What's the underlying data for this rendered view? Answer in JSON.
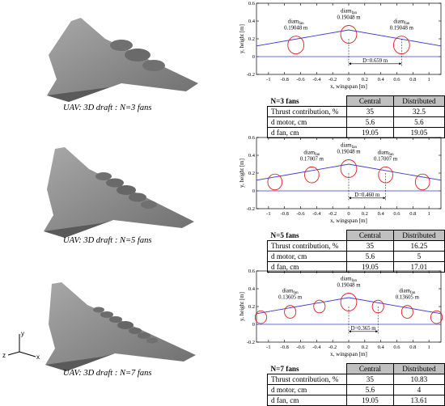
{
  "panels": [
    {
      "caption": "UAV: 3D draft : N=3 fans",
      "n": 3,
      "chart_data": {
        "type": "scatter",
        "xlabel": "x, wingspan [m]",
        "ylabel": "y, height [m]",
        "xlim": [
          -1.15,
          1.15
        ],
        "ylim": [
          -0.2,
          0.6
        ],
        "xticks": [
          "-1",
          "-0.8",
          "-0.6",
          "-0.4",
          "-0.2",
          "0",
          "0.2",
          "0.4",
          "0.6",
          "0.8",
          "1"
        ],
        "yticks": [
          "-0.2",
          "0",
          "0.2",
          "0.4",
          "0.6"
        ],
        "fan_centers_x": [
          -0.659,
          0,
          0.659
        ],
        "fan_centers_y": [
          0.13,
          0.25,
          0.13
        ],
        "fan_diameters": [
          0.19048,
          0.19048,
          0.19048
        ],
        "fan_label_indices": [
          0,
          1,
          2
        ],
        "labels": [
          "diam",
          "diam",
          "diam"
        ],
        "label_sub": "fan",
        "label_values": [
          "0.19048 m",
          "0.19048 m",
          "0.19048 m"
        ],
        "spacing_label": "D=0.659 m",
        "spacing_x": [
          0,
          0.659
        ]
      },
      "table": {
        "title": "N=3 fans",
        "col1": "Central",
        "col2": "Distributed",
        "rows": [
          {
            "label": "Thrust contribution, %",
            "c": "35",
            "d": "32.5"
          },
          {
            "label": "d motor, cm",
            "c": "5.6",
            "d": "5.6"
          },
          {
            "label": "d fan, cm",
            "c": "19.05",
            "d": "19.05"
          }
        ]
      }
    },
    {
      "caption": "UAV: 3D draft : N=5 fans",
      "n": 5,
      "chart_data": {
        "type": "scatter",
        "xlabel": "x, wingspan [m]",
        "ylabel": "y, height [m]",
        "xlim": [
          -1.15,
          1.15
        ],
        "ylim": [
          -0.2,
          0.6
        ],
        "xticks": [
          "-1",
          "-0.8",
          "-0.6",
          "-0.4",
          "-0.2",
          "0",
          "0.2",
          "0.4",
          "0.6",
          "0.8",
          "1"
        ],
        "yticks": [
          "-0.2",
          "0",
          "0.2",
          "0.4",
          "0.6"
        ],
        "fan_centers_x": [
          -0.92,
          -0.46,
          0,
          0.46,
          0.92
        ],
        "fan_centers_y": [
          0.1,
          0.18,
          0.25,
          0.18,
          0.1
        ],
        "fan_diameters": [
          0.17007,
          0.17007,
          0.19048,
          0.17007,
          0.17007
        ],
        "fan_label_indices": [
          1,
          2,
          3
        ],
        "labels": [
          "diam",
          "diam",
          "diam"
        ],
        "label_sub": "fan",
        "label_values": [
          "0.17007 m",
          "0.19048 m",
          "0.17007 m"
        ],
        "spacing_label": "D=0.460 m",
        "spacing_x": [
          0,
          0.46
        ]
      },
      "table": {
        "title": "N=5 fans",
        "col1": "Central",
        "col2": "Distributed",
        "rows": [
          {
            "label": "Thrust contribution, %",
            "c": "35",
            "d": "16.25"
          },
          {
            "label": "d motor, cm",
            "c": "5.6",
            "d": "5"
          },
          {
            "label": "d fan, cm",
            "c": "19.05",
            "d": "17.01"
          }
        ]
      }
    },
    {
      "caption": "UAV: 3D draft : N=7 fans",
      "n": 7,
      "chart_data": {
        "type": "scatter",
        "xlabel": "x, wingspan [m]",
        "ylabel": "y, height [m]",
        "xlim": [
          -1.15,
          1.15
        ],
        "ylim": [
          -0.2,
          0.6
        ],
        "xticks": [
          "-1",
          "-0.8",
          "-0.6",
          "-0.4",
          "-0.2",
          "0",
          "0.2",
          "0.4",
          "0.6",
          "0.8",
          "1"
        ],
        "yticks": [
          "-0.2",
          "0",
          "0.2",
          "0.4",
          "0.6"
        ],
        "fan_centers_x": [
          -1.095,
          -0.73,
          -0.365,
          0,
          0.365,
          0.73,
          1.095
        ],
        "fan_centers_y": [
          0.08,
          0.14,
          0.2,
          0.25,
          0.2,
          0.14,
          0.08
        ],
        "fan_diameters": [
          0.13605,
          0.13605,
          0.13605,
          0.19048,
          0.13605,
          0.13605,
          0.13605
        ],
        "fan_label_indices": [
          1,
          3,
          5
        ],
        "labels": [
          "diam",
          "diam",
          "diam"
        ],
        "label_sub": "fan",
        "label_values": [
          "0.13605 m",
          "0.19048 m",
          "0.13605 m"
        ],
        "spacing_label": "D=0.365 m",
        "spacing_x": [
          0,
          0.365
        ]
      },
      "table": {
        "title": "N=7 fans",
        "col1": "Central",
        "col2": "Distributed",
        "rows": [
          {
            "label": "Thrust contribution, %",
            "c": "35",
            "d": "10.83"
          },
          {
            "label": "d motor, cm",
            "c": "5.6",
            "d": "4"
          },
          {
            "label": "d fan, cm",
            "c": "19.05",
            "d": "13.61"
          }
        ]
      }
    }
  ],
  "axes_icon": {
    "x": "x",
    "y": "y",
    "z": "z"
  },
  "colors": {
    "envelope": "#3a3ad0",
    "fan": "#e02020",
    "uav_body": "#8c8c8c",
    "uav_dark": "#5a5a5a",
    "header_fill": "#c0c0c0"
  }
}
